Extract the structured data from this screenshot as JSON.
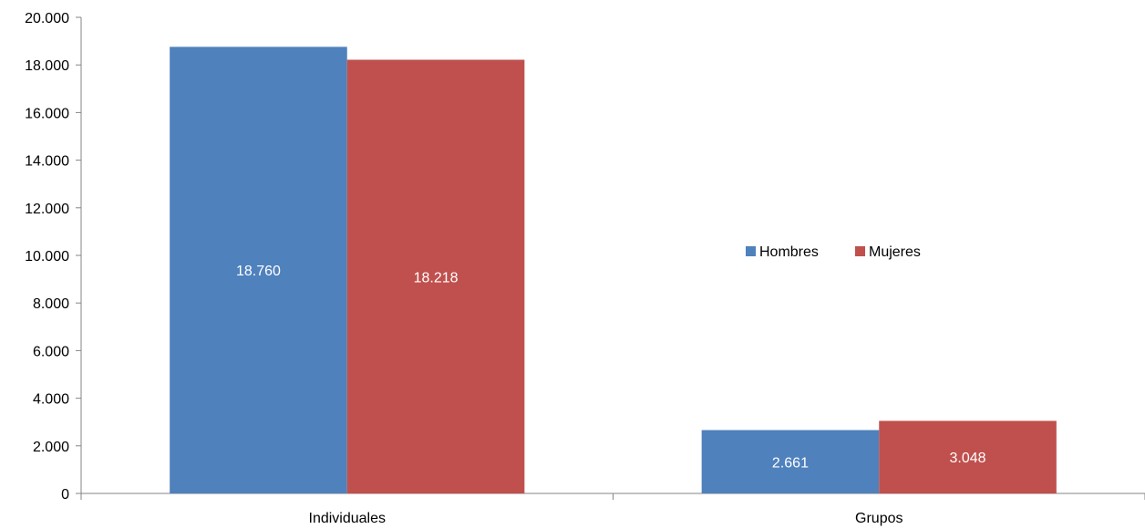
{
  "chart_data": {
    "type": "bar",
    "title": "",
    "xlabel": "",
    "ylabel": "",
    "categories": [
      "Individuales",
      "Grupos"
    ],
    "series": [
      {
        "name": "Hombres",
        "values": [
          18760,
          2661
        ],
        "labels": [
          "18.760",
          "2.661"
        ],
        "color": "#4F81BD"
      },
      {
        "name": "Mujeres",
        "values": [
          18218,
          3048
        ],
        "labels": [
          "18.218",
          "3.048"
        ],
        "color": "#C0504D"
      }
    ],
    "ylim": [
      0,
      20000
    ],
    "yticks": [
      0,
      2000,
      4000,
      6000,
      8000,
      10000,
      12000,
      14000,
      16000,
      18000,
      20000
    ],
    "ytick_labels": [
      "0",
      "2.000",
      "4.000",
      "6.000",
      "8.000",
      "10.000",
      "12.000",
      "14.000",
      "16.000",
      "18.000",
      "20.000"
    ],
    "grid": false,
    "legend_position": "right"
  }
}
